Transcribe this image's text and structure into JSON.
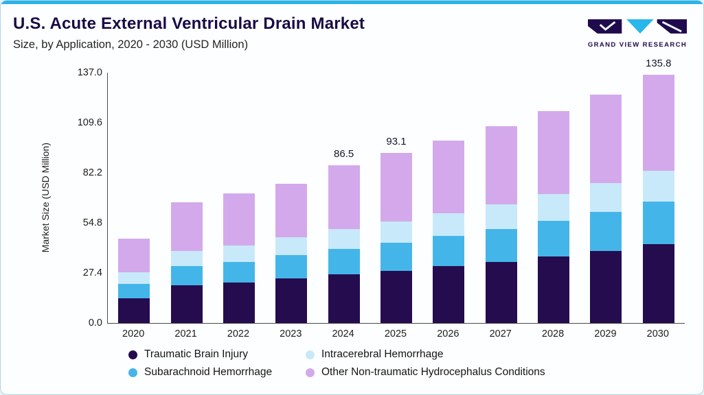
{
  "logo": {
    "text": "GRAND VIEW RESEARCH"
  },
  "chart_data": {
    "type": "bar",
    "stacked": true,
    "title": "U.S. Acute External Ventricular Drain Market",
    "subtitle": "Size, by Application, 2020 - 2030 (USD Million)",
    "ylabel": "Market Size (USD Million)",
    "xlabel": "",
    "ylim": [
      0,
      137
    ],
    "y_ticks": [
      "0.0",
      "27.4",
      "54.8",
      "82.2",
      "109.6",
      "137.0"
    ],
    "grid": false,
    "legend_position": "bottom",
    "categories": [
      "2020",
      "2021",
      "2022",
      "2023",
      "2024",
      "2025",
      "2026",
      "2027",
      "2028",
      "2029",
      "2030"
    ],
    "stack_order_bottom_to_top": [
      "Traumatic Brain Injury",
      "Subarachnoid Hemorrhage",
      "Intracerebral Hemorrhage",
      "Other Non-traumatic Hydrocephalus Conditions"
    ],
    "series": [
      {
        "name": "Traumatic Brain Injury",
        "color": "#250c4f",
        "values": [
          13.5,
          20.5,
          22.0,
          24.5,
          26.5,
          28.5,
          31.0,
          33.5,
          36.5,
          39.5,
          43.0
        ]
      },
      {
        "name": "Subarachnoid Hemorrhage",
        "color": "#44b5e9",
        "values": [
          8.0,
          10.5,
          11.5,
          12.5,
          14.0,
          15.3,
          16.5,
          18.0,
          19.5,
          21.5,
          23.5
        ]
      },
      {
        "name": "Intracerebral Hemorrhage",
        "color": "#c8e9f9",
        "values": [
          6.2,
          8.5,
          9.0,
          9.8,
          11.0,
          11.8,
          12.5,
          13.5,
          14.6,
          15.5,
          17.0
        ]
      },
      {
        "name": "Other Non-traumatic Hydrocephalus Conditions",
        "color": "#d3a9ec",
        "values": [
          18.5,
          26.5,
          28.5,
          29.5,
          35.0,
          37.5,
          40.0,
          42.9,
          45.4,
          48.5,
          52.3
        ]
      }
    ],
    "totals_labels": [
      "",
      "",
      "",
      "",
      "86.5",
      "93.1",
      "",
      "",
      "",
      "",
      "135.8"
    ],
    "legend_order": [
      "Traumatic Brain Injury",
      "Intracerebral Hemorrhage",
      "Subarachnoid Hemorrhage",
      "Other Non-traumatic Hydrocephalus Conditions"
    ]
  }
}
